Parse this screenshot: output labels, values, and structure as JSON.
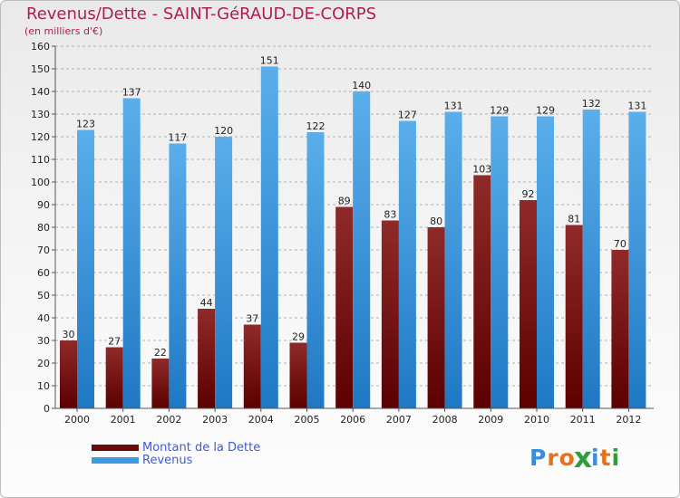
{
  "header": {
    "title": "Revenus/Dette - SAINT-GéRAUD-DE-CORPS",
    "subtitle": "(en milliers d'€)"
  },
  "colors": {
    "title": "#b01e4a",
    "dette_top": "#8f2a2a",
    "dette_bottom": "#5c0000",
    "revenus_top": "#5aaeea",
    "revenus_bottom": "#1f78c4",
    "legend_text": "#3f5bd6",
    "grid": "#9a9a9a",
    "tick_text": "#222222"
  },
  "legend": {
    "items": [
      {
        "label": "Montant de la Dette",
        "color": "#6a0a0a"
      },
      {
        "label": "Revenus",
        "color": "#3f9ae4"
      }
    ]
  },
  "logo": {
    "text": "Proxiti",
    "letters": [
      {
        "ch": "P",
        "color": "#3a8ed8"
      },
      {
        "ch": "r",
        "color": "#e8701a"
      },
      {
        "ch": "o",
        "color": "#e8701a"
      },
      {
        "ch": "x",
        "color": "#2f9e3a"
      },
      {
        "ch": "i",
        "color": "#3a8ed8"
      },
      {
        "ch": "t",
        "color": "#e8701a"
      },
      {
        "ch": "i",
        "color": "#2f9e3a"
      }
    ]
  },
  "chart_data": {
    "type": "bar",
    "title": "Revenus/Dette - SAINT-GéRAUD-DE-CORPS",
    "subtitle": "(en milliers d'€)",
    "xlabel": "",
    "ylabel": "",
    "categories": [
      "2000",
      "2001",
      "2002",
      "2003",
      "2004",
      "2005",
      "2006",
      "2007",
      "2008",
      "2009",
      "2010",
      "2011",
      "2012"
    ],
    "series": [
      {
        "name": "Montant de la Dette",
        "values": [
          30,
          27,
          22,
          44,
          37,
          29,
          89,
          83,
          80,
          103,
          92,
          81,
          70
        ]
      },
      {
        "name": "Revenus",
        "values": [
          123,
          137,
          117,
          120,
          151,
          122,
          140,
          127,
          131,
          129,
          129,
          132,
          131
        ]
      }
    ],
    "ylim": [
      0,
      160
    ],
    "yticks": [
      0,
      10,
      20,
      30,
      40,
      50,
      60,
      70,
      80,
      90,
      100,
      110,
      120,
      130,
      140,
      150,
      160
    ],
    "grid": true,
    "legend_position": "bottom-left"
  }
}
